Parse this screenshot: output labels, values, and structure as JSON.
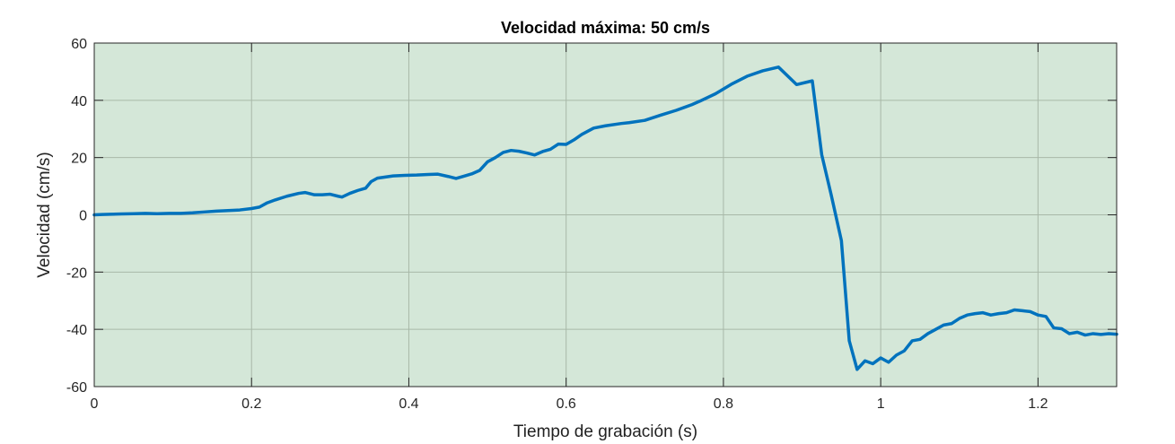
{
  "chart_data": {
    "type": "line",
    "title": "Velocidad máxima: 50 cm/s",
    "xlabel": "Tiempo de grabación (s)",
    "ylabel": "Velocidad (cm/s)",
    "xlim": [
      0,
      1.3
    ],
    "ylim": [
      -60,
      60
    ],
    "x_ticks": [
      0,
      0.2,
      0.4,
      0.6,
      0.8,
      1,
      1.2
    ],
    "x_tick_labels": [
      "0",
      "0.2",
      "0.4",
      "0.6",
      "0.8",
      "1",
      "1.2"
    ],
    "y_ticks": [
      -60,
      -40,
      -20,
      0,
      20,
      40,
      60
    ],
    "y_tick_labels": [
      "-60",
      "-40",
      "-20",
      "0",
      "20",
      "40",
      "60"
    ],
    "grid": true,
    "background_color": "#d4e7d8",
    "series": [
      {
        "color": "#0072bd",
        "x": [
          0,
          0.01,
          0.02,
          0.035,
          0.05,
          0.065,
          0.08,
          0.095,
          0.11,
          0.125,
          0.14,
          0.155,
          0.17,
          0.185,
          0.2,
          0.21,
          0.22,
          0.23,
          0.245,
          0.26,
          0.268,
          0.28,
          0.29,
          0.3,
          0.31,
          0.315,
          0.325,
          0.335,
          0.345,
          0.352,
          0.36,
          0.37,
          0.38,
          0.395,
          0.41,
          0.425,
          0.437,
          0.45,
          0.46,
          0.47,
          0.48,
          0.49,
          0.5,
          0.51,
          0.52,
          0.53,
          0.54,
          0.55,
          0.56,
          0.57,
          0.58,
          0.59,
          0.6,
          0.61,
          0.62,
          0.635,
          0.65,
          0.67,
          0.68,
          0.7,
          0.72,
          0.74,
          0.76,
          0.77,
          0.79,
          0.81,
          0.83,
          0.85,
          0.87,
          0.893,
          0.913,
          0.925,
          0.937,
          0.95,
          0.96,
          0.97,
          0.98,
          0.99,
          1.0,
          1.01,
          1.02,
          1.03,
          1.04,
          1.05,
          1.06,
          1.07,
          1.08,
          1.09,
          1.1,
          1.11,
          1.12,
          1.13,
          1.14,
          1.15,
          1.16,
          1.17,
          1.18,
          1.19,
          1.2,
          1.21,
          1.22,
          1.23,
          1.24,
          1.25,
          1.26,
          1.27,
          1.28,
          1.29,
          1.3
        ],
        "y": [
          0,
          0.1,
          0.2,
          0.3,
          0.4,
          0.5,
          0.4,
          0.5,
          0.5,
          0.7,
          1.0,
          1.3,
          1.5,
          1.7,
          2.2,
          2.7,
          4.2,
          5.2,
          6.5,
          7.5,
          7.8,
          7.0,
          7.0,
          7.2,
          6.5,
          6.2,
          7.5,
          8.5,
          9.3,
          11.6,
          12.8,
          13.2,
          13.6,
          13.8,
          13.9,
          14.1,
          14.2,
          13.4,
          12.7,
          13.5,
          14.3,
          15.5,
          18.5,
          20.0,
          21.8,
          22.5,
          22.2,
          21.6,
          20.9,
          22.1,
          22.9,
          24.7,
          24.6,
          26.2,
          28.1,
          30.3,
          31.1,
          31.9,
          32.2,
          33.0,
          34.8,
          36.5,
          38.5,
          39.7,
          42.3,
          45.6,
          48.4,
          50.3,
          51.6,
          45.5,
          46.8,
          21.0,
          7.0,
          -9.0,
          -44.0,
          -54.0,
          -51.0,
          -52.0,
          -50.0,
          -51.5,
          -49.0,
          -47.5,
          -44.0,
          -43.5,
          -41.5,
          -40.0,
          -38.5,
          -38.0,
          -36.2,
          -35.0,
          -34.5,
          -34.2,
          -35.0,
          -34.5,
          -34.2,
          -33.2,
          -33.5,
          -33.8,
          -35.0,
          -35.5,
          -39.5,
          -39.8,
          -41.5,
          -41.0,
          -42.0,
          -41.5,
          -41.8,
          -41.5,
          -41.7
        ]
      }
    ]
  }
}
